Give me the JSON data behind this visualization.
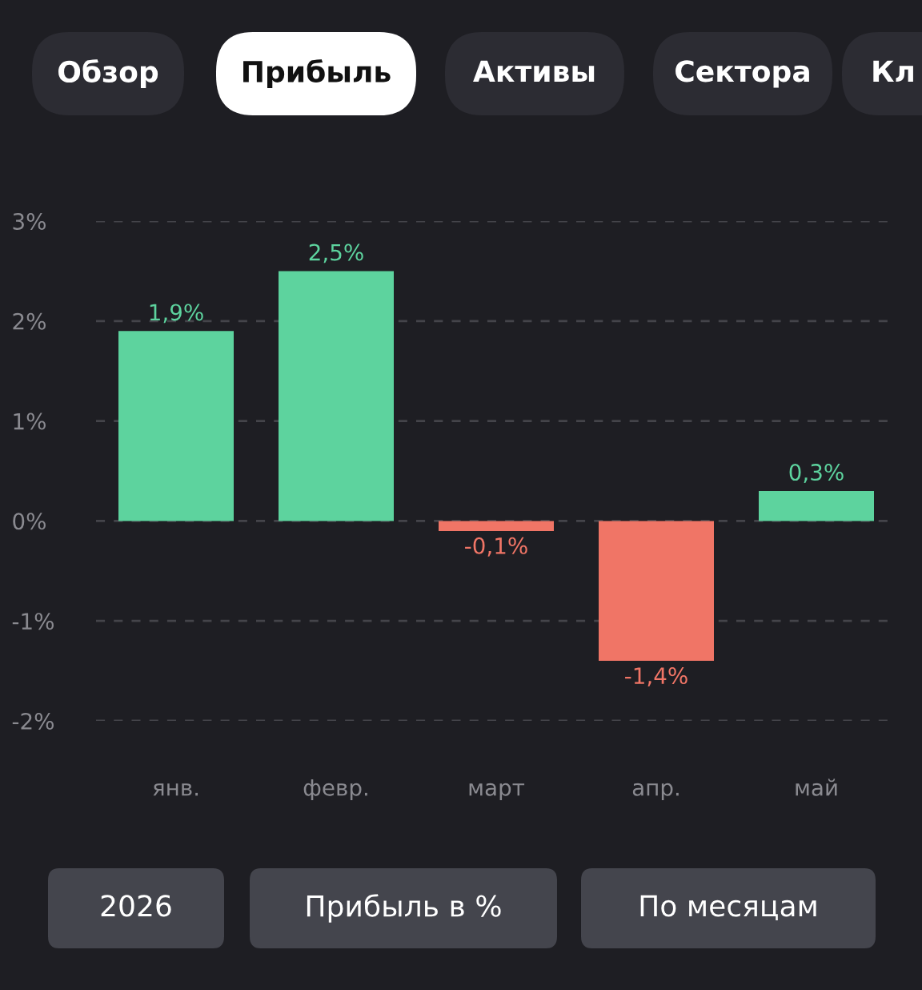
{
  "chart_data": {
    "type": "bar",
    "categories": [
      "янв.",
      "февр.",
      "март",
      "апр.",
      "май"
    ],
    "values": [
      1.9,
      2.5,
      -0.1,
      -1.4,
      0.3
    ],
    "colors": [
      "#5dd39e",
      "#5dd39e",
      "#f07566",
      "#f07566",
      "#5dd39e"
    ],
    "value_labels": [
      "1,9%",
      "2,5%",
      "-0,1%",
      "-1,4%",
      "0,3%"
    ],
    "ylim": [
      -2,
      3
    ],
    "yticks": [
      {
        "value": -2,
        "label": "-2%"
      },
      {
        "value": -1,
        "label": "-1%"
      },
      {
        "value": 0,
        "label": "0%"
      },
      {
        "value": 1,
        "label": "1%"
      },
      {
        "value": 2,
        "label": "2%"
      },
      {
        "value": 3,
        "label": "3%"
      }
    ],
    "grid": "y",
    "annotations": [
      "Обзор",
      "Прибыль",
      "Активы",
      "Сектора",
      "Кл",
      "2026",
      "Прибыль в %",
      "По месяцам"
    ]
  }
}
